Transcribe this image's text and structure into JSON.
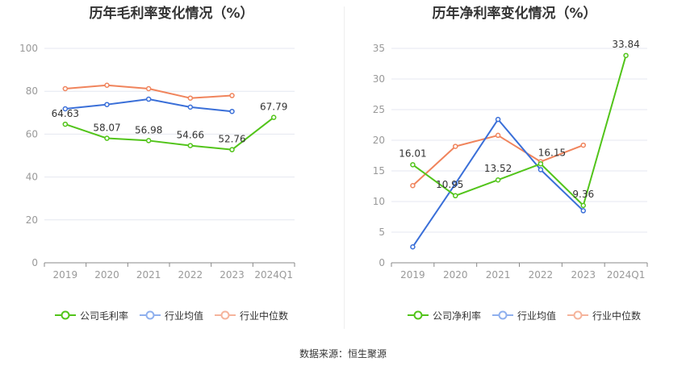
{
  "footer": {
    "source": "数据来源：恒生聚源"
  },
  "chart_data": [
    {
      "type": "line",
      "title": "历年毛利率变化情况（%）",
      "categories": [
        "2019",
        "2020",
        "2021",
        "2022",
        "2023",
        "2024Q1"
      ],
      "ylim": [
        0,
        100
      ],
      "yticks": [
        0,
        20,
        40,
        60,
        80,
        100
      ],
      "grid": true,
      "legend_position": "bottom",
      "series": [
        {
          "name": "公司毛利率",
          "color": "#52c41a",
          "labeled": true,
          "values": [
            64.63,
            58.07,
            56.98,
            54.66,
            52.76,
            67.79
          ],
          "labels": [
            "64.63",
            "58.07",
            "56.98",
            "54.66",
            "52.76",
            "67.79"
          ]
        },
        {
          "name": "行业均值",
          "color": "#3a6fd8",
          "labeled": false,
          "values": [
            71.8,
            73.8,
            76.3,
            72.6,
            70.6,
            null
          ]
        },
        {
          "name": "行业中位数",
          "color": "#f0845c",
          "labeled": false,
          "values": [
            81.2,
            82.8,
            81.2,
            76.8,
            78.0,
            null
          ]
        }
      ]
    },
    {
      "type": "line",
      "title": "历年净利率变化情况（%）",
      "categories": [
        "2019",
        "2020",
        "2021",
        "2022",
        "2023",
        "2024Q1"
      ],
      "ylim": [
        0,
        35
      ],
      "yticks": [
        0,
        5,
        10,
        15,
        20,
        25,
        30,
        35
      ],
      "grid": true,
      "legend_position": "bottom",
      "series": [
        {
          "name": "公司净利率",
          "color": "#52c41a",
          "labeled": true,
          "values": [
            16.01,
            10.95,
            13.52,
            16.15,
            9.36,
            33.84
          ],
          "labels": [
            "16.01",
            "10.95",
            "13.52",
            "16.15",
            "9.36",
            "33.84"
          ]
        },
        {
          "name": "行业均值",
          "color": "#3a6fd8",
          "labeled": false,
          "values": [
            2.6,
            12.9,
            23.4,
            15.2,
            8.5,
            null
          ]
        },
        {
          "name": "行业中位数",
          "color": "#f0845c",
          "labeled": false,
          "values": [
            12.6,
            19.0,
            20.8,
            16.5,
            19.2,
            null
          ]
        }
      ]
    }
  ]
}
